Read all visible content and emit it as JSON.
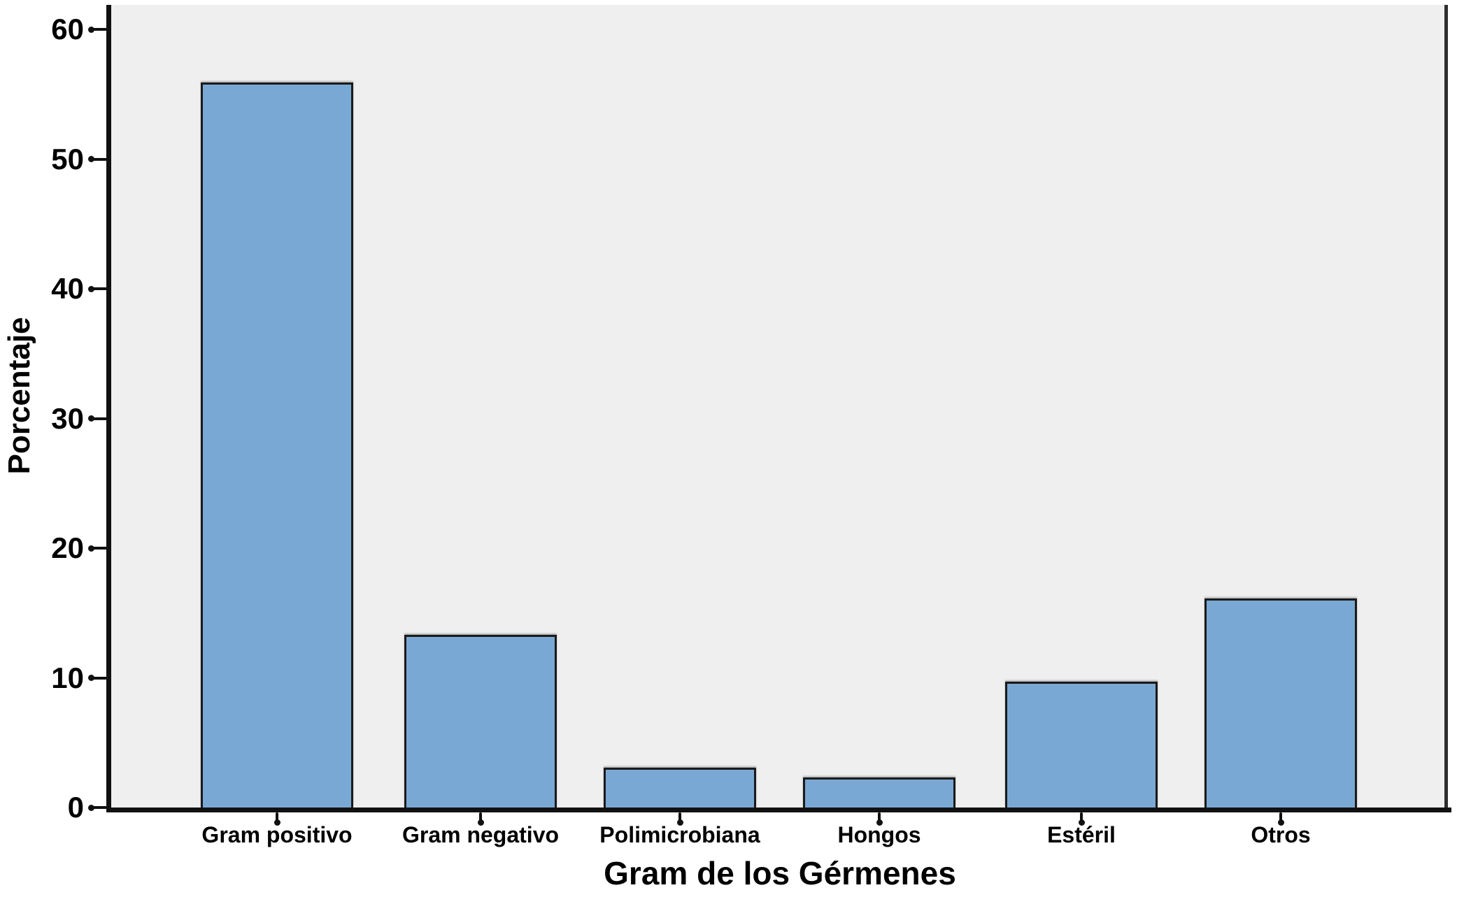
{
  "chart_data": {
    "type": "bar",
    "xlabel": "Gram de los Gérmenes",
    "ylabel": "Porcentaje",
    "categories": [
      "Gram positivo",
      "Gram negativo",
      "Polimicrobiana",
      "Hongos",
      "Estéril",
      "Otros"
    ],
    "values": [
      55.9,
      13.3,
      3.1,
      2.3,
      9.7,
      16.1
    ],
    "ylim": [
      0,
      61.9
    ],
    "yticks": [
      0,
      10,
      20,
      30,
      40,
      50,
      60
    ],
    "grid": false,
    "legend": false,
    "colors": {
      "bar_fill": "#7aa8d4",
      "bar_border": "#1a1a1a",
      "plot_background": "#efefef",
      "axis_color": "#111111",
      "text_color": "#000000"
    }
  }
}
